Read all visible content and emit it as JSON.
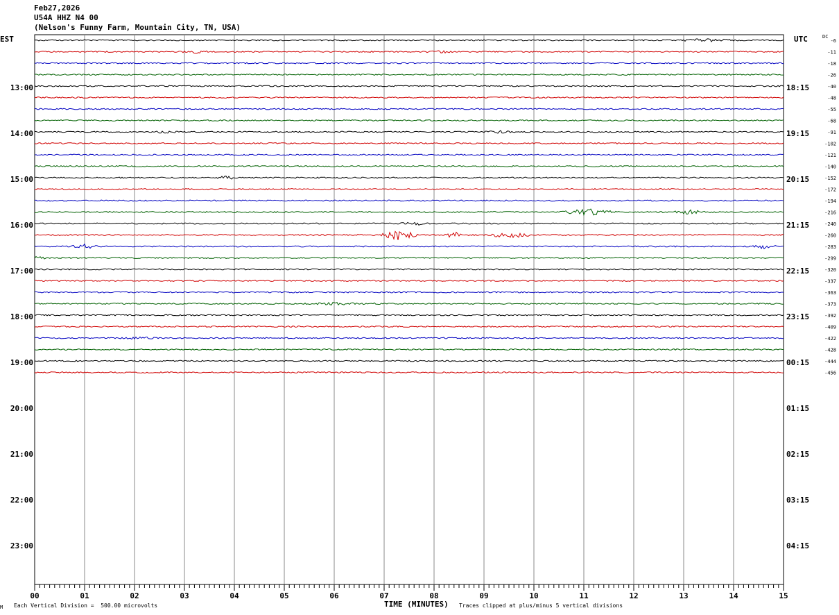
{
  "header": {
    "date": "Feb27,2026",
    "station": "U54A HHZ N4 00",
    "location": "(Nelson's Funny Farm, Mountain City, TN, USA)"
  },
  "labels": {
    "left_tz": "EST",
    "right_tz": "UTC",
    "dc": "DC"
  },
  "footer": {
    "scale": "Each Vertical Division =  500.00 microvolts",
    "xlabel": "TIME (MINUTES)",
    "clip_note": "Traces clipped at plus/minus 5 vertical divisions",
    "corner": "M"
  },
  "chart_data": {
    "type": "line",
    "title": "U54A HHZ N4 00",
    "xlabel": "TIME (MINUTES)",
    "xlim": [
      0,
      15
    ],
    "x_ticks": [
      "00",
      "01",
      "02",
      "03",
      "04",
      "05",
      "06",
      "07",
      "08",
      "09",
      "10",
      "11",
      "12",
      "13",
      "14",
      "15"
    ],
    "left_time_labels": [
      "13:00",
      "14:00",
      "15:00",
      "16:00",
      "17:00",
      "18:00",
      "19:00",
      "20:00",
      "21:00",
      "22:00",
      "23:00"
    ],
    "right_time_labels": [
      "18:15",
      "19:15",
      "20:15",
      "21:15",
      "22:15",
      "23:15",
      "00:15",
      "01:15",
      "02:15",
      "03:15",
      "04:15"
    ],
    "trace_colors": [
      "#000000",
      "#d00000",
      "#0000c0",
      "#006000"
    ],
    "dc_offsets": [
      "-6",
      "-11",
      "-18",
      "-26",
      "-40",
      "-48",
      "-55",
      "-68",
      "-91",
      "-102",
      "-121",
      "-140",
      "-152",
      "-172",
      "-194",
      "-216",
      "-240",
      "-260",
      "-283",
      "-299",
      "-320",
      "-337",
      "-363",
      "-373",
      "-392",
      "-409",
      "-422",
      "-428",
      "-444",
      "-456"
    ],
    "events": [
      {
        "trace": 0,
        "minute": 13.4,
        "amp": 1.6,
        "dur": 0.7
      },
      {
        "trace": 1,
        "minute": 3.2,
        "amp": 2.2,
        "dur": 0.3
      },
      {
        "trace": 1,
        "minute": 8.1,
        "amp": 1.8,
        "dur": 0.3
      },
      {
        "trace": 8,
        "minute": 2.6,
        "amp": 1.4,
        "dur": 0.3
      },
      {
        "trace": 8,
        "minute": 9.3,
        "amp": 1.4,
        "dur": 0.3
      },
      {
        "trace": 12,
        "minute": 3.85,
        "amp": 2.6,
        "dur": 0.2
      },
      {
        "trace": 15,
        "minute": 11.1,
        "amp": 4.0,
        "dur": 0.6
      },
      {
        "trace": 15,
        "minute": 13.1,
        "amp": 2.4,
        "dur": 0.4
      },
      {
        "trace": 16,
        "minute": 7.6,
        "amp": 2.6,
        "dur": 0.3
      },
      {
        "trace": 17,
        "minute": 7.3,
        "amp": 7.0,
        "dur": 0.4
      },
      {
        "trace": 17,
        "minute": 8.4,
        "amp": 5.0,
        "dur": 0.2
      },
      {
        "trace": 17,
        "minute": 9.5,
        "amp": 4.0,
        "dur": 0.5
      },
      {
        "trace": 18,
        "minute": 1.0,
        "amp": 3.0,
        "dur": 0.3
      },
      {
        "trace": 18,
        "minute": 14.6,
        "amp": 2.6,
        "dur": 0.3
      },
      {
        "trace": 19,
        "minute": 0.1,
        "amp": 1.6,
        "dur": 0.2
      },
      {
        "trace": 23,
        "minute": 6.2,
        "amp": 1.5,
        "dur": 0.8
      },
      {
        "trace": 26,
        "minute": 2.1,
        "amp": 1.3,
        "dur": 0.4
      }
    ]
  }
}
